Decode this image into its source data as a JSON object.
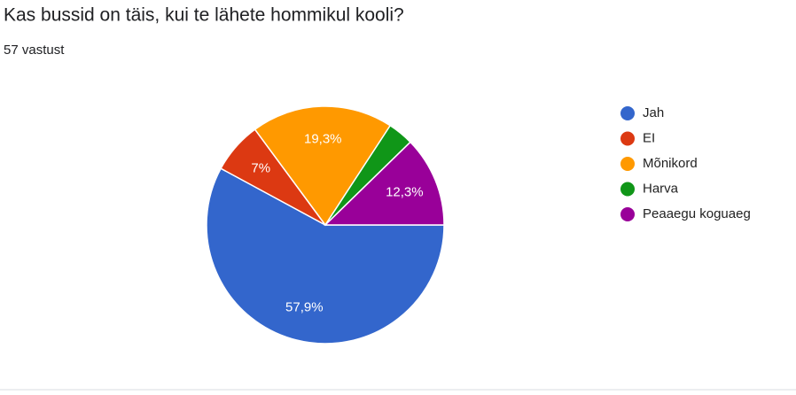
{
  "chart_data": {
    "type": "pie",
    "title": "Kas bussid on täis, kui te lähete hommikul kooli?",
    "subtitle": "57 vastust",
    "categories": [
      "Jah",
      "EI",
      "Mõnikord",
      "Harva",
      "Peaaegu koguaeg"
    ],
    "values": [
      57.9,
      7,
      19.3,
      3.5,
      12.3
    ],
    "value_labels": [
      "57,9%",
      "7%",
      "19,3%",
      null,
      "12,3%"
    ],
    "colors": [
      "#3366cc",
      "#dc3912",
      "#ff9900",
      "#109618",
      "#990099"
    ],
    "legend": "right"
  }
}
